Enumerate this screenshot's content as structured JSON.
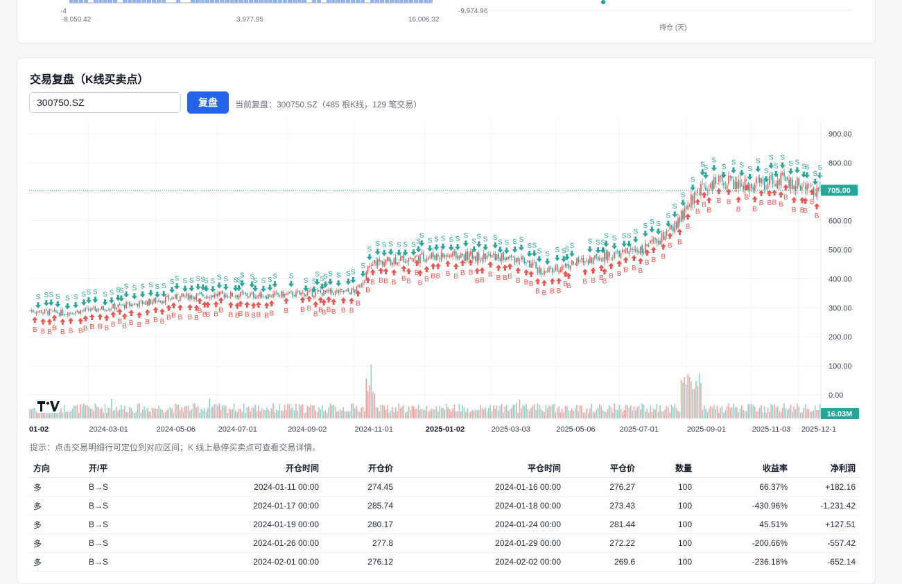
{
  "top_panel": {
    "hist": {
      "y_label_top": "-4",
      "x_ticks": [
        "-8,050.42",
        "3,977.95",
        "16,006.32"
      ]
    },
    "scatter": {
      "y_tick": "-9,974.96",
      "x_label": "持仓 (天)"
    }
  },
  "replay": {
    "title": "交易复盘（K线买卖点）",
    "symbol_value": "300750.SZ",
    "button_label": "复盘",
    "status": "当前复盘：300750.SZ（485 根K线，129 笔交易）",
    "hint": "提示：点击交易明细行可定位到对应区间；K 线上悬停买卖点可查看交易详情。",
    "last_price_label": "705.00",
    "volume_label": "16.03M",
    "tv_logo": "TV"
  },
  "chart_data": {
    "type": "candlestick",
    "y_ticks": [
      "900.00",
      "800.00",
      "700.00",
      "600.00",
      "500.00",
      "400.00",
      "300.00",
      "200.00",
      "100.00",
      "0.00"
    ],
    "x_ticks": [
      "01-02",
      "2024-03-01",
      "2024-05-06",
      "2024-07-01",
      "2024-09-02",
      "2024-11-01",
      "2025-01-02",
      "2025-03-03",
      "2025-05-06",
      "2025-07-01",
      "2025-09-01",
      "2025-11-03",
      "2025-12-1"
    ],
    "bars": 485,
    "last_price": 705.0,
    "approx_close_path": [
      [
        0,
        290
      ],
      [
        20,
        282
      ],
      [
        45,
        298
      ],
      [
        70,
        318
      ],
      [
        95,
        340
      ],
      [
        120,
        345
      ],
      [
        145,
        342
      ],
      [
        170,
        350
      ],
      [
        195,
        355
      ],
      [
        200,
        360
      ],
      [
        210,
        455
      ],
      [
        230,
        470
      ],
      [
        250,
        480
      ],
      [
        275,
        478
      ],
      [
        300,
        470
      ],
      [
        315,
        420
      ],
      [
        330,
        450
      ],
      [
        345,
        470
      ],
      [
        360,
        485
      ],
      [
        375,
        505
      ],
      [
        385,
        530
      ],
      [
        395,
        580
      ],
      [
        402,
        640
      ],
      [
        410,
        715
      ],
      [
        425,
        735
      ],
      [
        440,
        720
      ],
      [
        460,
        740
      ],
      [
        485,
        705
      ]
    ],
    "markers": {
      "buy_label": "B",
      "sell_label": "S"
    },
    "colors": {
      "up": "#ef5350",
      "down": "#26a69a",
      "price_line": "#26a69a",
      "buy": "#ef5350",
      "sell": "#26a69a"
    }
  },
  "trades": {
    "headers": [
      "方向",
      "开/平",
      "开仓时间",
      "开仓价",
      "平仓时间",
      "平仓价",
      "数量",
      "收益率",
      "净利润"
    ],
    "rows": [
      {
        "dir": "多",
        "oc": "B→S",
        "open_time": "2024-01-11 00:00",
        "open_price": "274.45",
        "close_time": "2024-01-16 00:00",
        "close_price": "276.27",
        "qty": "100",
        "ret": "66.37%",
        "pnl": "+182.16",
        "sign": "pos"
      },
      {
        "dir": "多",
        "oc": "B→S",
        "open_time": "2024-01-17 00:00",
        "open_price": "285.74",
        "close_time": "2024-01-18 00:00",
        "close_price": "273.43",
        "qty": "100",
        "ret": "-430.96%",
        "pnl": "-1,231.42",
        "sign": "neg"
      },
      {
        "dir": "多",
        "oc": "B→S",
        "open_time": "2024-01-19 00:00",
        "open_price": "280.17",
        "close_time": "2024-01-24 00:00",
        "close_price": "281.44",
        "qty": "100",
        "ret": "45.51%",
        "pnl": "+127.51",
        "sign": "pos"
      },
      {
        "dir": "多",
        "oc": "B→S",
        "open_time": "2024-01-26 00:00",
        "open_price": "277.8",
        "close_time": "2024-01-29 00:00",
        "close_price": "272.22",
        "qty": "100",
        "ret": "-200.66%",
        "pnl": "-557.42",
        "sign": "neg"
      },
      {
        "dir": "多",
        "oc": "B→S",
        "open_time": "2024-02-01 00:00",
        "open_price": "276.12",
        "close_time": "2024-02-02 00:00",
        "close_price": "269.6",
        "qty": "100",
        "ret": "-236.18%",
        "pnl": "-652.14",
        "sign": "neg"
      }
    ]
  }
}
